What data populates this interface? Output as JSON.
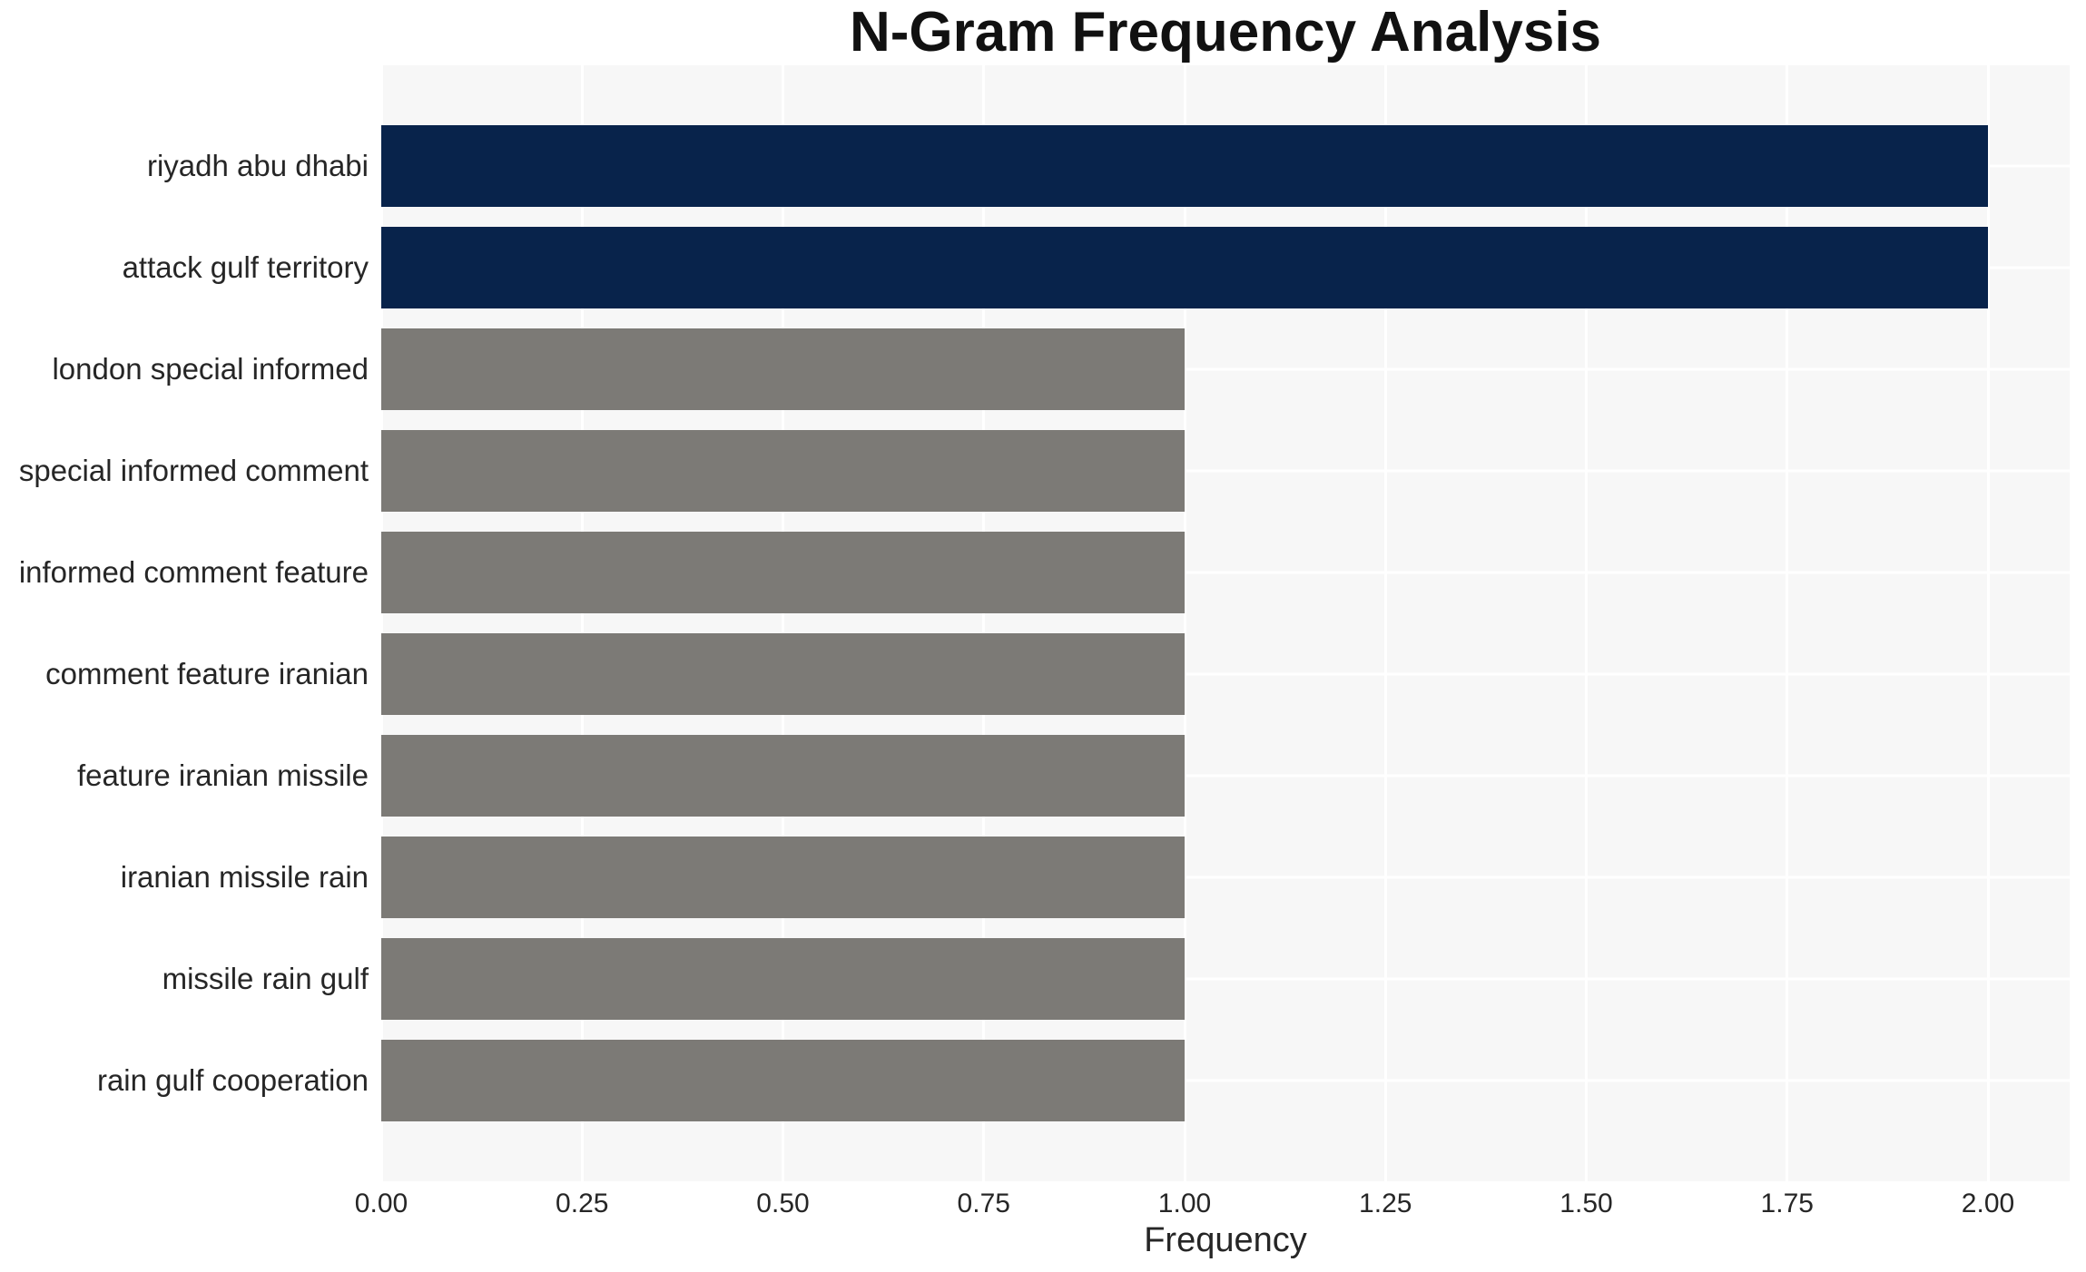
{
  "chart_data": {
    "type": "bar",
    "orientation": "horizontal",
    "title": "N-Gram Frequency Analysis",
    "xlabel": "Frequency",
    "ylabel": "",
    "categories": [
      "riyadh abu dhabi",
      "attack gulf territory",
      "london special informed",
      "special informed comment",
      "informed comment feature",
      "comment feature iranian",
      "feature iranian missile",
      "iranian missile rain",
      "missile rain gulf",
      "rain gulf cooperation"
    ],
    "values": [
      2,
      2,
      1,
      1,
      1,
      1,
      1,
      1,
      1,
      1
    ],
    "bar_colors": [
      "#08234B",
      "#08234B",
      "#7C7A76",
      "#7C7A76",
      "#7C7A76",
      "#7C7A76",
      "#7C7A76",
      "#7C7A76",
      "#7C7A76",
      "#7C7A76"
    ],
    "xlim": [
      0,
      2.1
    ],
    "xticks": [
      {
        "value": 0.0,
        "label": "0.00"
      },
      {
        "value": 0.25,
        "label": "0.25"
      },
      {
        "value": 0.5,
        "label": "0.50"
      },
      {
        "value": 0.75,
        "label": "0.75"
      },
      {
        "value": 1.0,
        "label": "1.00"
      },
      {
        "value": 1.25,
        "label": "1.25"
      },
      {
        "value": 1.5,
        "label": "1.50"
      },
      {
        "value": 1.75,
        "label": "1.75"
      },
      {
        "value": 2.0,
        "label": "2.00"
      }
    ],
    "grid": true,
    "legend_position": "none",
    "colors": {
      "highlight_bar": "#08234B",
      "muted_bar": "#7C7A76",
      "panel_background": "#F7F7F7",
      "gridline": "#FFFFFF",
      "text": "#262626",
      "page_background": "#FFFFFF"
    }
  }
}
